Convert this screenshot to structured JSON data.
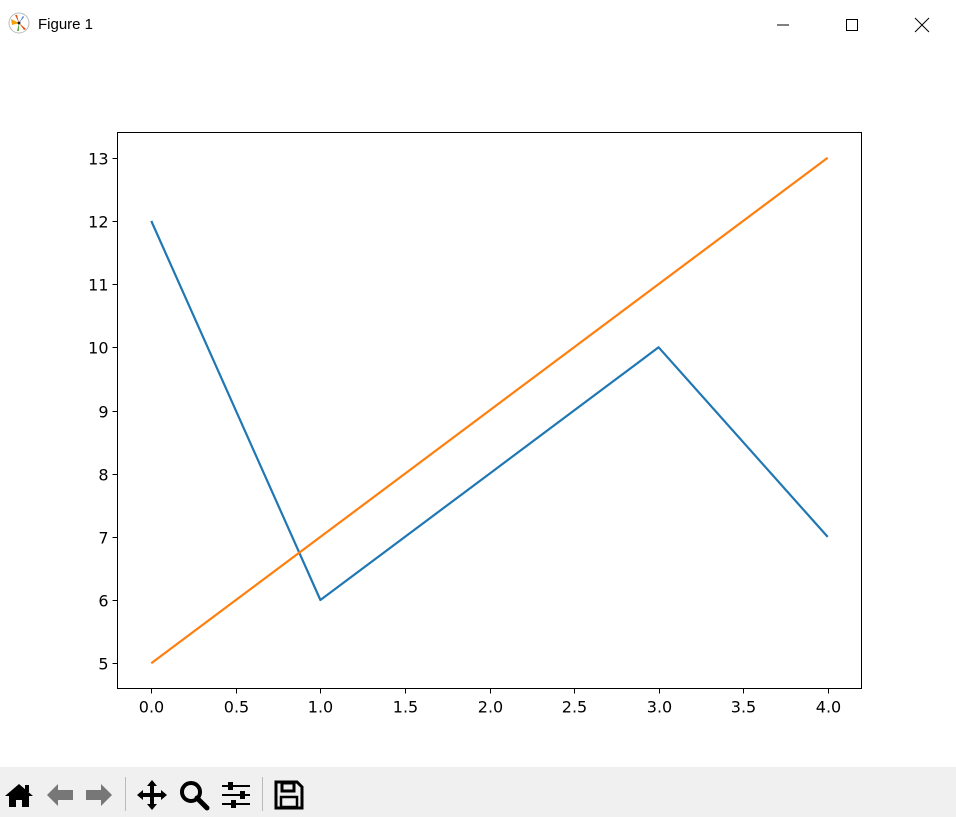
{
  "window": {
    "title": "Figure 1",
    "icon": "matplotlib-logo-icon",
    "buttons": [
      "minimize-icon",
      "maximize-icon",
      "close-icon"
    ]
  },
  "toolbar": {
    "items": [
      "home-icon",
      "back-icon",
      "forward-icon",
      "pan-icon",
      "zoom-icon",
      "configure-subplots-icon",
      "save-icon"
    ]
  },
  "chart_data": {
    "type": "line",
    "title": "",
    "xlabel": "",
    "ylabel": "",
    "x": [
      0,
      1,
      2,
      3,
      4
    ],
    "series": [
      {
        "color": "#1f77b4",
        "values": [
          12,
          6,
          8,
          10,
          7
        ]
      },
      {
        "color": "#ff7f0e",
        "values": [
          5,
          7,
          9,
          11,
          13
        ]
      }
    ],
    "xlim": [
      -0.2,
      4.2
    ],
    "ylim": [
      4.6,
      13.4
    ],
    "xticks": [
      0,
      0.5,
      1,
      1.5,
      2,
      2.5,
      3,
      3.5,
      4
    ],
    "xtick_labels": [
      "0.0",
      "0.5",
      "1.0",
      "1.5",
      "2.0",
      "2.5",
      "3.0",
      "3.5",
      "4.0"
    ],
    "yticks": [
      5,
      6,
      7,
      8,
      9,
      10,
      11,
      12,
      13
    ],
    "ytick_labels": [
      "5",
      "6",
      "7",
      "8",
      "9",
      "10",
      "11",
      "12",
      "13"
    ],
    "grid": false,
    "legend": "none"
  }
}
